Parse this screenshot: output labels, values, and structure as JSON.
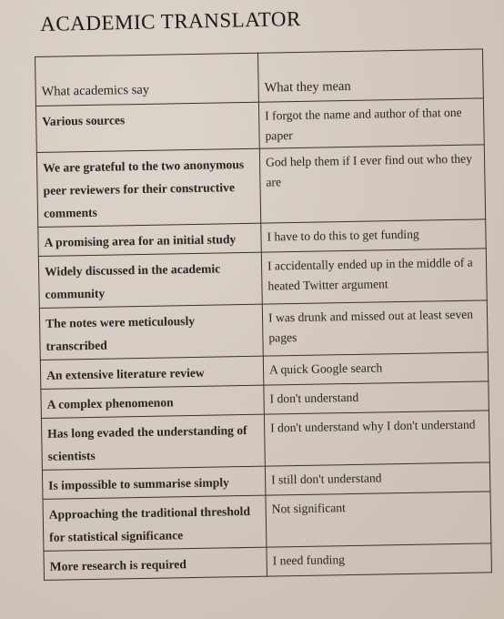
{
  "title": "ACADEMIC TRANSLATOR",
  "table": {
    "headers": [
      "What academics say",
      "What they mean"
    ],
    "rows": [
      {
        "say": "Various sources",
        "mean": "I forgot the name and author of that one paper"
      },
      {
        "say": "We are grateful to the two anonymous peer reviewers for their constructive comments",
        "mean": "God help them if I ever find out who they are"
      },
      {
        "say": "A promising area for an initial study",
        "mean": "I have to do this to get funding"
      },
      {
        "say": "Widely discussed in the academic community",
        "mean": "I accidentally ended up in the middle of a heated Twitter argument"
      },
      {
        "say": "The notes were meticulously transcribed",
        "mean": "I was drunk and missed out at least seven pages"
      },
      {
        "say": "An extensive literature review",
        "mean": "A quick Google search"
      },
      {
        "say": "A complex phenomenon",
        "mean": "I don't understand"
      },
      {
        "say": "Has long evaded the understanding of scientists",
        "mean": "I don't understand why I don't understand"
      },
      {
        "say": "Is impossible to summarise simply",
        "mean": "I still don't understand"
      },
      {
        "say": "Approaching the traditional threshold for statistical significance",
        "mean": "Not significant"
      },
      {
        "say": "More research is required",
        "mean": "I need funding"
      }
    ]
  }
}
